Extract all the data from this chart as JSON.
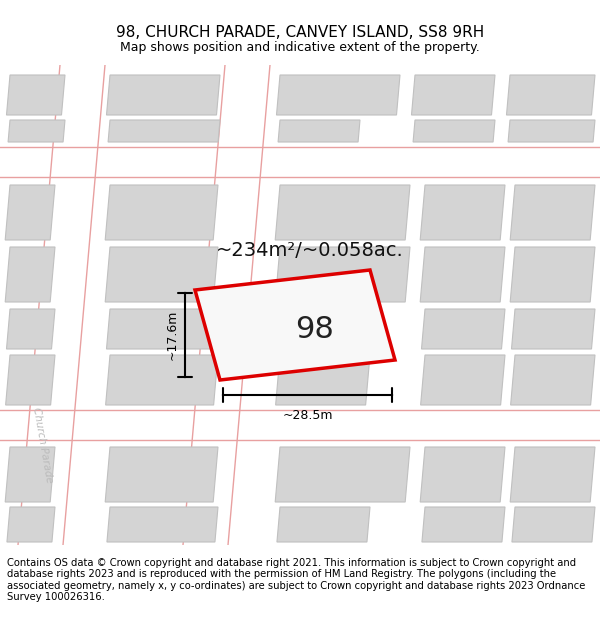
{
  "title": "98, CHURCH PARADE, CANVEY ISLAND, SS8 9RH",
  "subtitle": "Map shows position and indicative extent of the property.",
  "footer": "Contains OS data © Crown copyright and database right 2021. This information is subject to Crown copyright and database rights 2023 and is reproduced with the permission of HM Land Registry. The polygons (including the associated geometry, namely x, y co-ordinates) are subject to Crown copyright and database rights 2023 Ordnance Survey 100026316.",
  "area_label": "~234m²/~0.058ac.",
  "width_label": "~28.5m",
  "height_label": "~17.6m",
  "plot_number": "98",
  "street_label_upper": "Church Parade",
  "street_label_lower": "Church Parade",
  "bg_color": "#efefef",
  "road_fill": "#ffffff",
  "building_fill": "#d4d4d4",
  "building_edge": "#c0c0c0",
  "plot_outline_color": "#dd0000",
  "road_outline_color": "#e8a0a0",
  "dim_line_color": "#000000",
  "title_fontsize": 11,
  "subtitle_fontsize": 9,
  "footer_fontsize": 7.2,
  "area_fontsize": 14,
  "plot_num_fontsize": 22
}
